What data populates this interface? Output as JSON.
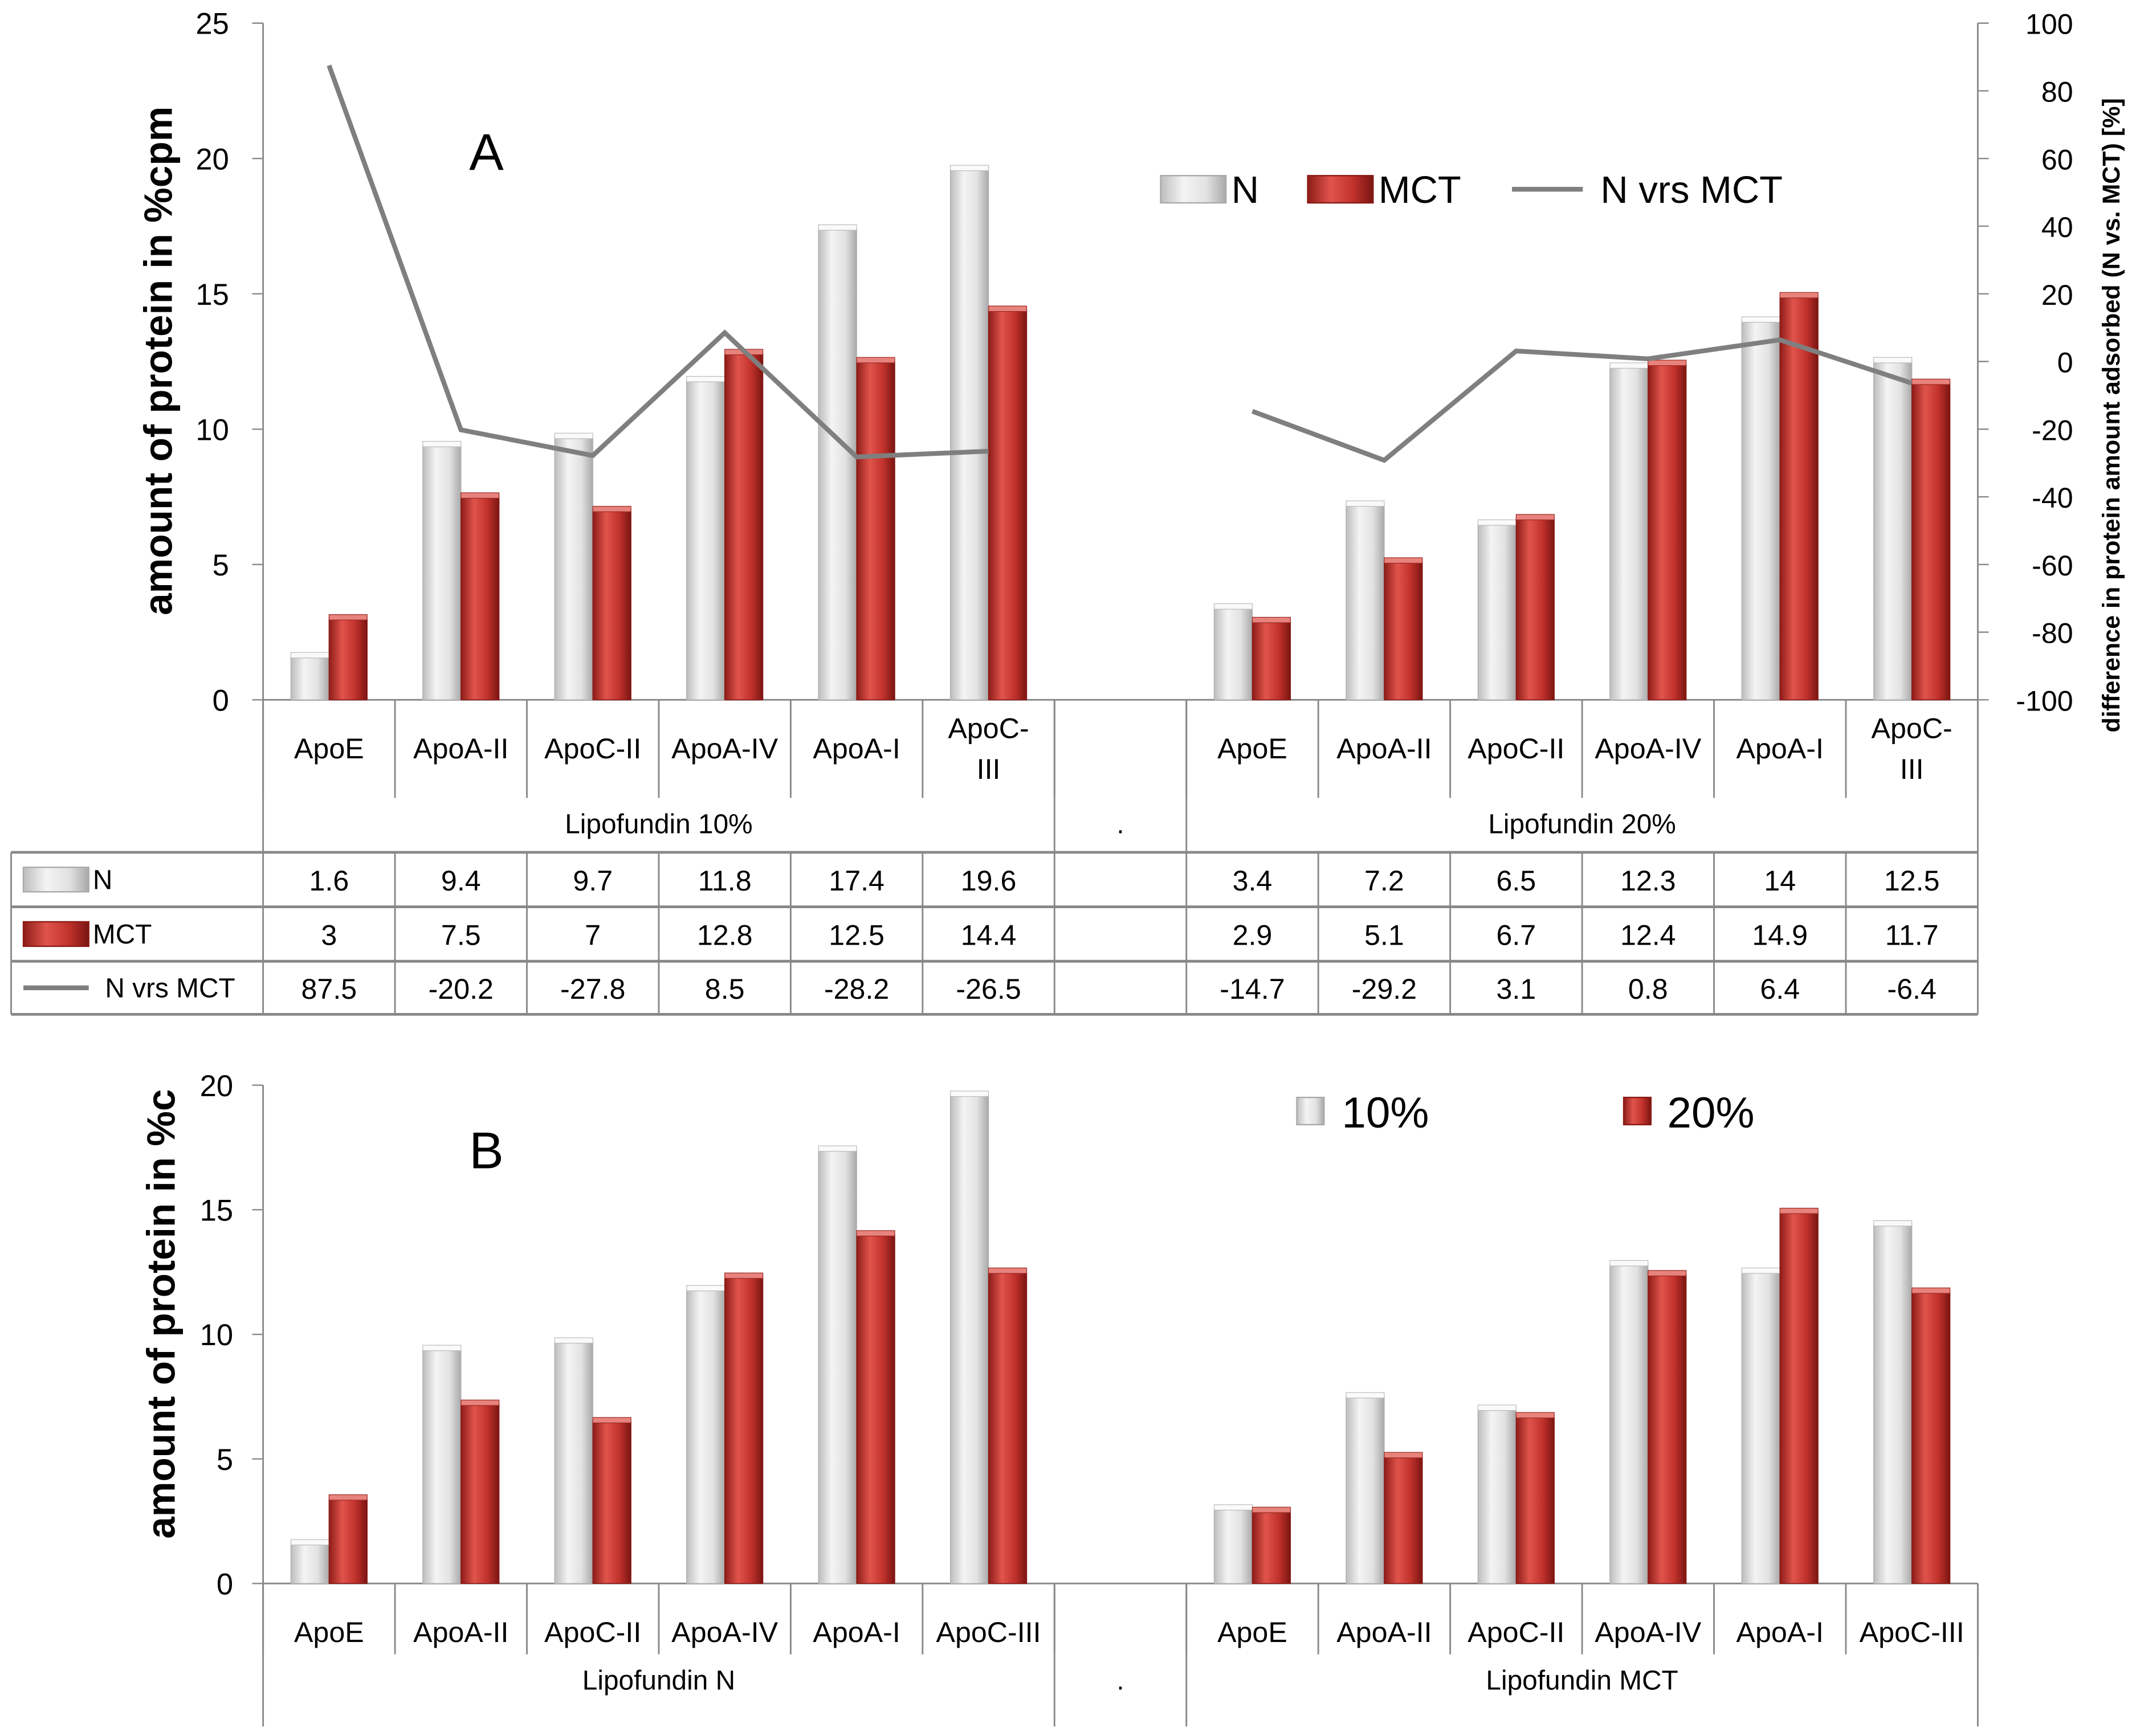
{
  "chart_data": [
    {
      "panel": "A",
      "type": "bar",
      "panel_label": "A",
      "ylabel": "amount of protein in %cpm",
      "y2label": "difference in protein amount adsorbed (N vs. MCT) [%]",
      "ylim": [
        0,
        25
      ],
      "yticks": [
        0,
        5,
        10,
        15,
        20,
        25
      ],
      "y2lim": [
        -100,
        100
      ],
      "y2ticks": [
        -100,
        -80,
        -60,
        -40,
        -20,
        0,
        20,
        40,
        60,
        80,
        100
      ],
      "legend_position": "top-right",
      "groups": [
        {
          "label": "Lipofundin 10%",
          "categories": [
            "ApoE",
            "ApoA-II",
            "ApoC-II",
            "ApoA-IV",
            "ApoA-I",
            "ApoC-III"
          ]
        },
        {
          "label": ".",
          "categories": []
        },
        {
          "label": "Lipofundin 20%",
          "categories": [
            "ApoE",
            "ApoA-II",
            "ApoC-II",
            "ApoA-IV",
            "ApoA-I",
            "ApoC-III"
          ]
        }
      ],
      "series": [
        {
          "name": "N",
          "kind": "bar",
          "color": "#d9d9d9",
          "values": [
            1.6,
            9.4,
            9.7,
            11.8,
            17.4,
            19.6,
            null,
            3.4,
            7.2,
            6.5,
            12.3,
            14,
            12.5
          ]
        },
        {
          "name": "MCT",
          "kind": "bar",
          "color": "#c0312b",
          "values": [
            3,
            7.5,
            7,
            12.8,
            12.5,
            14.4,
            null,
            2.9,
            5.1,
            6.7,
            12.4,
            14.9,
            11.7
          ]
        },
        {
          "name": "N vrs MCT",
          "kind": "line",
          "axis": "right",
          "color": "#7f7f7f",
          "values": [
            87.5,
            -20.2,
            -27.8,
            8.5,
            -28.2,
            -26.5,
            null,
            -14.7,
            -29.2,
            3.1,
            0.8,
            6.4,
            -6.4
          ]
        }
      ]
    },
    {
      "panel": "B",
      "type": "bar",
      "panel_label": "B",
      "ylabel": "amount of protein in %c",
      "ylim": [
        0,
        20
      ],
      "yticks": [
        0,
        5,
        10,
        15,
        20
      ],
      "legend_position": "top-right",
      "groups": [
        {
          "label": "Lipofundin N",
          "categories": [
            "ApoE",
            "ApoA-II",
            "ApoC-II",
            "ApoA-IV",
            "ApoA-I",
            "ApoC-III"
          ]
        },
        {
          "label": ".",
          "categories": []
        },
        {
          "label": "Lipofundin MCT",
          "categories": [
            "ApoE",
            "ApoA-II",
            "ApoC-II",
            "ApoA-IV",
            "ApoA-I",
            "ApoC-III"
          ]
        }
      ],
      "series": [
        {
          "name": "10%",
          "kind": "bar",
          "color": "#d9d9d9",
          "values": [
            1.6,
            9.4,
            9.7,
            11.8,
            17.4,
            19.6,
            null,
            3,
            7.5,
            7,
            12.8,
            12.5,
            14.4
          ]
        },
        {
          "name": "20%",
          "kind": "bar",
          "color": "#c0312b",
          "values": [
            3.4,
            7.2,
            6.5,
            12.3,
            14,
            12.5,
            null,
            2.9,
            5.1,
            6.7,
            12.4,
            14.9,
            11.7
          ]
        }
      ]
    }
  ]
}
